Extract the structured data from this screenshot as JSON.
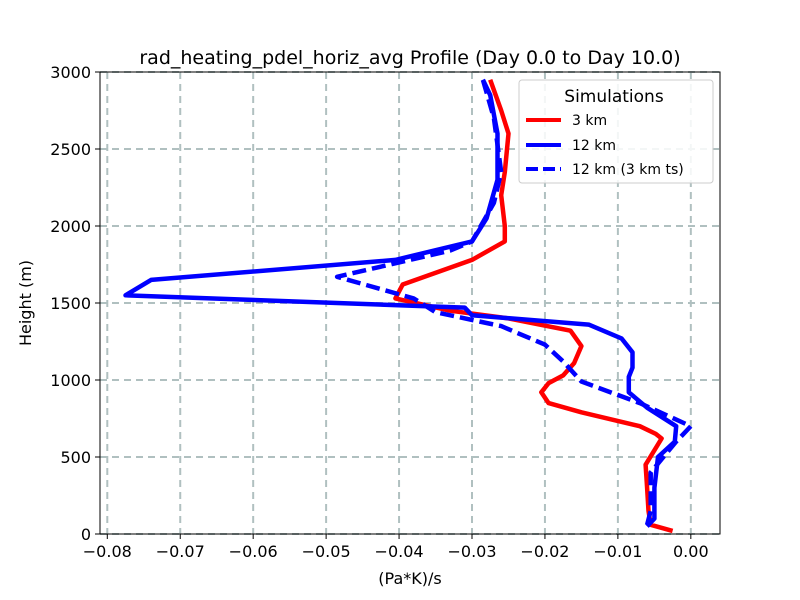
{
  "chart_data": {
    "type": "line",
    "title": "rad_heating_pdel_horiz_avg Profile (Day 0.0 to Day 10.0)",
    "xlabel": "(Pa*K)/s",
    "ylabel": "Height (m)",
    "xlim": [
      -0.081,
      0.004
    ],
    "ylim": [
      0,
      3000
    ],
    "x_ticks": [
      -0.08,
      -0.07,
      -0.06,
      -0.05,
      -0.04,
      -0.03,
      -0.02,
      -0.01,
      0.0
    ],
    "x_tick_labels": [
      "−0.08",
      "−0.07",
      "−0.06",
      "−0.05",
      "−0.04",
      "−0.03",
      "−0.02",
      "−0.01",
      "0.00"
    ],
    "y_ticks": [
      0,
      500,
      1000,
      1500,
      2000,
      2500,
      3000
    ],
    "y_tick_labels": [
      "0",
      "500",
      "1000",
      "1500",
      "2000",
      "2500",
      "3000"
    ],
    "grid": true,
    "legend": {
      "title": "Simulations",
      "location": "upper-right"
    },
    "series": [
      {
        "name": "3 km",
        "color": "#ff0000",
        "style": "solid",
        "points": [
          [
            -0.0025,
            20
          ],
          [
            -0.0055,
            60
          ],
          [
            -0.0058,
            150
          ],
          [
            -0.006,
            300
          ],
          [
            -0.0062,
            450
          ],
          [
            -0.004,
            620
          ],
          [
            -0.0048,
            650
          ],
          [
            -0.007,
            700
          ],
          [
            -0.015,
            790
          ],
          [
            -0.0195,
            850
          ],
          [
            -0.0205,
            920
          ],
          [
            -0.0195,
            980
          ],
          [
            -0.0175,
            1030
          ],
          [
            -0.016,
            1110
          ],
          [
            -0.015,
            1220
          ],
          [
            -0.0165,
            1320
          ],
          [
            -0.025,
            1400
          ],
          [
            -0.033,
            1450
          ],
          [
            -0.0405,
            1530
          ],
          [
            -0.0395,
            1620
          ],
          [
            -0.03,
            1780
          ],
          [
            -0.0255,
            1900
          ],
          [
            -0.0255,
            2000
          ],
          [
            -0.026,
            2200
          ],
          [
            -0.0255,
            2350
          ],
          [
            -0.025,
            2600
          ],
          [
            -0.026,
            2750
          ],
          [
            -0.0275,
            2950
          ]
        ]
      },
      {
        "name": "12 km",
        "color": "#0000ff",
        "style": "solid",
        "points": [
          [
            -0.006,
            50
          ],
          [
            -0.005,
            100
          ],
          [
            -0.005,
            300
          ],
          [
            -0.0045,
            500
          ],
          [
            -0.0022,
            600
          ],
          [
            -0.002,
            700
          ],
          [
            -0.006,
            820
          ],
          [
            -0.0085,
            920
          ],
          [
            -0.0085,
            1020
          ],
          [
            -0.008,
            1080
          ],
          [
            -0.008,
            1180
          ],
          [
            -0.0095,
            1270
          ],
          [
            -0.014,
            1360
          ],
          [
            -0.03,
            1420
          ],
          [
            -0.031,
            1470
          ],
          [
            -0.0775,
            1550
          ],
          [
            -0.074,
            1650
          ],
          [
            -0.0405,
            1780
          ],
          [
            -0.03,
            1900
          ],
          [
            -0.028,
            2050
          ],
          [
            -0.0265,
            2300
          ],
          [
            -0.0265,
            2600
          ],
          [
            -0.0275,
            2850
          ],
          [
            -0.0285,
            2950
          ]
        ]
      },
      {
        "name": "12 km (3 km ts)",
        "color": "#0000ff",
        "style": "dashed",
        "points": [
          [
            -0.006,
            60
          ],
          [
            -0.0055,
            150
          ],
          [
            -0.0055,
            400
          ],
          [
            -0.002,
            600
          ],
          [
            0.0,
            700
          ],
          [
            -0.007,
            850
          ],
          [
            -0.015,
            990
          ],
          [
            -0.0175,
            1120
          ],
          [
            -0.02,
            1230
          ],
          [
            -0.026,
            1350
          ],
          [
            -0.035,
            1440
          ],
          [
            -0.038,
            1530
          ],
          [
            -0.0485,
            1670
          ],
          [
            -0.033,
            1840
          ],
          [
            -0.03,
            1900
          ],
          [
            -0.027,
            2150
          ],
          [
            -0.026,
            2350
          ],
          [
            -0.027,
            2700
          ],
          [
            -0.0285,
            2950
          ]
        ]
      }
    ]
  }
}
